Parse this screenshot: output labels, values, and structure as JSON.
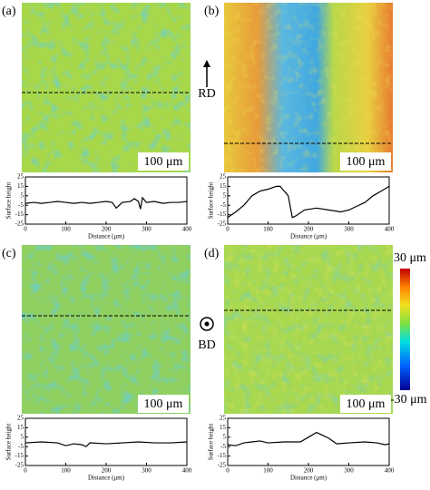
{
  "panels": [
    {
      "label": "(a)",
      "scale_bar": "100 μm"
    },
    {
      "label": "(b)",
      "scale_bar": "100 μm"
    },
    {
      "label": "(c)",
      "scale_bar": "100 μm"
    },
    {
      "label": "(d)",
      "scale_bar": "100 μm"
    }
  ],
  "direction_labels": [
    "RD",
    "BD"
  ],
  "colorbar": {
    "max_label": "30 μm",
    "min_label": "-30 μm"
  },
  "chart_data": [
    {
      "type": "line",
      "x_label": "Distance (μm)",
      "y_label": "Surface height",
      "xlim": [
        0,
        400
      ],
      "xticks": [
        0,
        100,
        200,
        300,
        400
      ],
      "ylim": [
        -25,
        25
      ],
      "yticks": [
        -25,
        -15,
        -5,
        5,
        15,
        25
      ],
      "color": "#000000",
      "x": [
        0,
        20,
        40,
        60,
        80,
        100,
        120,
        140,
        160,
        180,
        200,
        215,
        225,
        240,
        260,
        270,
        280,
        285,
        290,
        300,
        320,
        340,
        360,
        380,
        400
      ],
      "values": [
        -3,
        -2,
        -3,
        -2,
        -1,
        -2,
        -3,
        -2,
        -3,
        -2,
        -1,
        -2,
        -8,
        -2,
        -1,
        2,
        -1,
        -9,
        3,
        -2,
        -1,
        -3,
        -2,
        -2,
        -1
      ]
    },
    {
      "type": "line",
      "x_label": "Distance (μm)",
      "y_label": "Surface height",
      "xlim": [
        0,
        400
      ],
      "xticks": [
        0,
        100,
        200,
        300,
        400
      ],
      "ylim": [
        -25,
        25
      ],
      "yticks": [
        -25,
        -15,
        -5,
        5,
        15,
        25
      ],
      "color": "#000000",
      "x": [
        0,
        20,
        40,
        60,
        80,
        100,
        120,
        130,
        140,
        150,
        160,
        170,
        190,
        220,
        250,
        280,
        300,
        320,
        340,
        360,
        380,
        400
      ],
      "values": [
        -18,
        -12,
        -5,
        5,
        10,
        12,
        15,
        15,
        10,
        5,
        -18,
        -16,
        -10,
        -8,
        -10,
        -12,
        -10,
        -6,
        -2,
        5,
        10,
        15
      ]
    },
    {
      "type": "line",
      "x_label": "Distance (μm)",
      "y_label": "Surface height",
      "xlim": [
        0,
        400
      ],
      "xticks": [
        0,
        100,
        200,
        300,
        400
      ],
      "ylim": [
        -25,
        25
      ],
      "yticks": [
        -25,
        -15,
        -5,
        5,
        15,
        25
      ],
      "color": "#000000",
      "x": [
        0,
        40,
        80,
        100,
        120,
        140,
        150,
        160,
        200,
        240,
        280,
        320,
        360,
        400
      ],
      "values": [
        -1,
        0,
        -1,
        -4,
        -2,
        -3,
        -5,
        -1,
        -2,
        -1,
        0,
        -1,
        -1,
        0
      ]
    },
    {
      "type": "line",
      "x_label": "Distance (μm)",
      "y_label": "Surface height",
      "xlim": [
        0,
        400
      ],
      "xticks": [
        0,
        100,
        200,
        300,
        400
      ],
      "ylim": [
        -25,
        25
      ],
      "yticks": [
        -25,
        -15,
        -5,
        5,
        15,
        25
      ],
      "color": "#000000",
      "x": [
        0,
        20,
        40,
        60,
        80,
        100,
        140,
        180,
        200,
        220,
        235,
        250,
        270,
        300,
        340,
        370,
        390,
        400
      ],
      "values": [
        -3,
        -4,
        -1,
        0,
        1,
        -1,
        0,
        0,
        5,
        10,
        7,
        4,
        -2,
        -1,
        0,
        -1,
        -3,
        -2
      ]
    }
  ]
}
